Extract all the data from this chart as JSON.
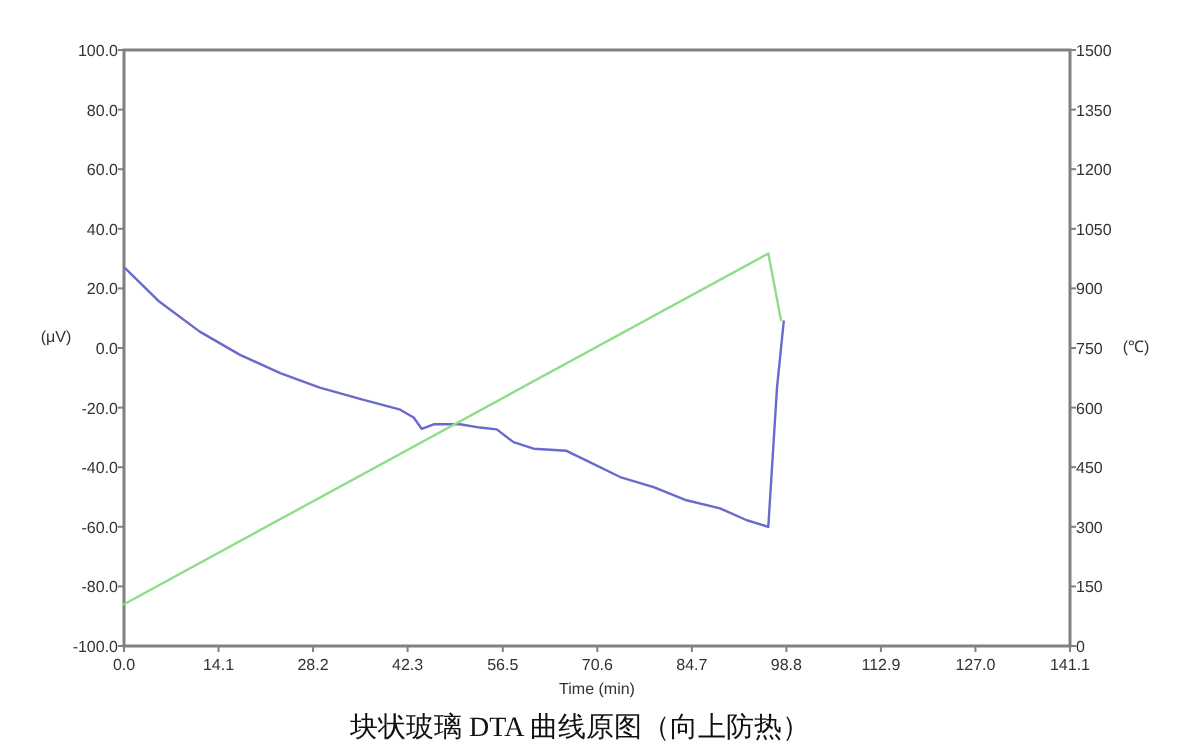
{
  "chart_data": {
    "type": "line",
    "title": "块状玻璃 DTA 曲线原图（向上防热）",
    "xlabel": "Time (min)",
    "ylabel": "(μV)",
    "y2label": "(℃)",
    "series": [
      {
        "color": "#6a6acc",
        "x": [
          0.2,
          5.3,
          11.3,
          17.3,
          23.3,
          29.2,
          35.2,
          41.2,
          43.2,
          44.4,
          46.2,
          50.1,
          53.1,
          55.6,
          58.1,
          61.1,
          66.0,
          69.0,
          74.0,
          79.0,
          83.9,
          88.9,
          92.9,
          96.1,
          97.4,
          98.4,
          98.2
        ],
        "values": [
          26.7,
          15.5,
          5.5,
          -2.3,
          -8.4,
          -13.3,
          -17.1,
          -20.7,
          -23.3,
          -27.1,
          -25.6,
          -25.6,
          -26.7,
          -27.3,
          -31.6,
          -33.8,
          -34.5,
          -37.8,
          -43.3,
          -46.7,
          -51.1,
          -53.8,
          -57.8,
          -60,
          -13.3,
          8.9,
          4.4
        ]
      },
      {
        "color": "#8ede88",
        "axis": "y2",
        "x": [
          0,
          96.1,
          98.0
        ],
        "values": [
          105,
          988,
          820
        ]
      }
    ],
    "xlim": [
      0,
      141.1
    ],
    "xticks": [
      {
        "value": 0,
        "label": "0.0"
      },
      14.1,
      28.2,
      42.3,
      56.5,
      70.6,
      84.7,
      98.8,
      112.9,
      {
        "value": 127,
        "label": "127.0"
      },
      141.1
    ],
    "ylim": [
      -100,
      100
    ],
    "yticks": [
      {
        "value": -100,
        "label": "-100.0"
      },
      {
        "value": -80,
        "label": "-80.0"
      },
      {
        "value": -60,
        "label": "-60.0"
      },
      {
        "value": -40,
        "label": "-40.0"
      },
      {
        "value": -20,
        "label": "-20.0"
      },
      {
        "value": 0,
        "label": "0.0"
      },
      {
        "value": 20,
        "label": "20.0"
      },
      {
        "value": 40,
        "label": "40.0"
      },
      {
        "value": 60,
        "label": "60.0"
      },
      {
        "value": 80,
        "label": "80.0"
      },
      {
        "value": 100,
        "label": "100.0"
      }
    ],
    "y2lim": [
      0,
      1500
    ],
    "y2ticks": [
      0,
      150,
      300,
      450,
      600,
      750,
      900,
      1050,
      1200,
      1350,
      1500
    ],
    "grid": false,
    "marker": "none",
    "line_style": "solid"
  }
}
